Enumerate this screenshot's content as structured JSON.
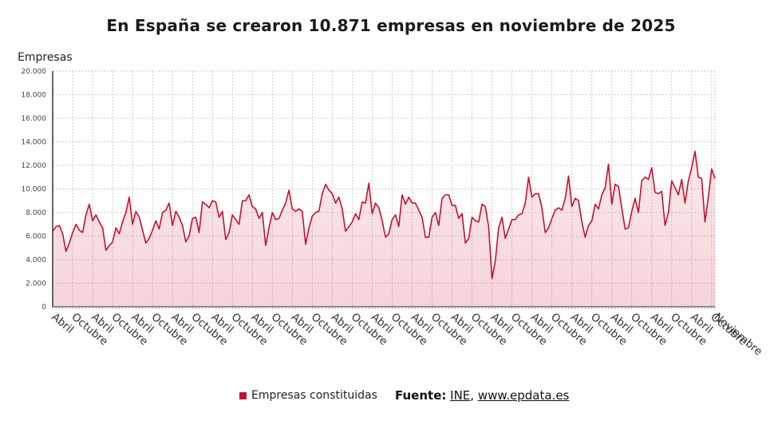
{
  "title": "En España se crearon 10.871 empresas en noviembre de 2025",
  "legend": {
    "label": "Empresas constituidas",
    "color": "#c8102e"
  },
  "source": {
    "label": "Fuente:",
    "ine": "INE",
    "separator": ", ",
    "site": "www.epdata.es"
  },
  "chart_data": {
    "type": "area",
    "ylabel": "Empresas",
    "ylim": [
      0,
      20000
    ],
    "yticks": [
      0,
      2000,
      4000,
      6000,
      8000,
      10000,
      12000,
      14000,
      16000,
      18000,
      20000
    ],
    "ytick_labels": [
      "0",
      "2.000",
      "4.000",
      "6.000",
      "8.000",
      "10.000",
      "12.000",
      "14.000",
      "16.000",
      "18.000",
      "20.000"
    ],
    "x_start": "2009-04",
    "x_end": "2025-11",
    "x_tick_labels": [
      "Abril",
      "Octubre",
      "Abril",
      "Octubre",
      "Abril",
      "Octubre",
      "Abril",
      "Octubre",
      "Abril",
      "Octubre",
      "Abril",
      "Octubre",
      "Abril",
      "Octubre",
      "Abril",
      "Octubre",
      "Abril",
      "Octubre",
      "Abril",
      "Octubre",
      "Abril",
      "Octubre",
      "Abril",
      "Octubre",
      "Abril",
      "Octubre",
      "Abril",
      "Octubre",
      "Abril",
      "Octubre",
      "Abril",
      "Octubre",
      "Abril",
      "Octubre",
      "Noviembre"
    ],
    "grid": true,
    "series": [
      {
        "name": "Empresas constituidas",
        "color": "#c8102e",
        "values": [
          6400,
          6800,
          6900,
          6200,
          4700,
          5400,
          6300,
          7000,
          6500,
          6300,
          7800,
          8700,
          7300,
          7800,
          7200,
          6700,
          4800,
          5200,
          5500,
          6700,
          6200,
          7200,
          8000,
          9300,
          7000,
          8100,
          7600,
          6500,
          5400,
          5800,
          6500,
          7300,
          6600,
          8000,
          8200,
          8800,
          6900,
          8100,
          7600,
          6900,
          5500,
          6000,
          7500,
          7600,
          6300,
          8900,
          8700,
          8400,
          9000,
          8900,
          7600,
          8100,
          5700,
          6300,
          7800,
          7400,
          7000,
          9000,
          9000,
          9500,
          8500,
          8300,
          7500,
          8000,
          5200,
          6700,
          8000,
          7400,
          7500,
          8200,
          8800,
          9900,
          8300,
          8100,
          8300,
          8100,
          5300,
          6700,
          7700,
          8000,
          8100,
          9600,
          10400,
          9900,
          9600,
          8800,
          9300,
          8300,
          6400,
          6800,
          7200,
          7900,
          7400,
          8900,
          8800,
          10500,
          7900,
          8800,
          8400,
          7300,
          5900,
          6200,
          7400,
          7800,
          6800,
          9500,
          8700,
          9300,
          8800,
          8800,
          8200,
          7600,
          5900,
          5900,
          7600,
          8000,
          6900,
          9200,
          9500,
          9500,
          8600,
          8600,
          7500,
          7900,
          5400,
          5800,
          7600,
          7300,
          7200,
          8700,
          8500,
          6800,
          2400,
          3900,
          6700,
          7600,
          5800,
          6600,
          7400,
          7400,
          7800,
          7900,
          8800,
          11000,
          9300,
          9600,
          9600,
          8400,
          6300,
          6700,
          7500,
          8200,
          8400,
          8200,
          9200,
          11100,
          8500,
          9200,
          9000,
          7200,
          5900,
          6900,
          7300,
          8700,
          8300,
          9500,
          10100,
          12100,
          8700,
          10400,
          10200,
          8400,
          6600,
          6700,
          8100,
          9200,
          8000,
          10700,
          11000,
          10800,
          11800,
          9700,
          9600,
          9800,
          6900,
          8000,
          10700,
          10100,
          9500,
          10800,
          8800,
          10700,
          11800,
          13200,
          11000,
          10900,
          7200,
          9300,
          11700,
          10871
        ]
      }
    ]
  }
}
